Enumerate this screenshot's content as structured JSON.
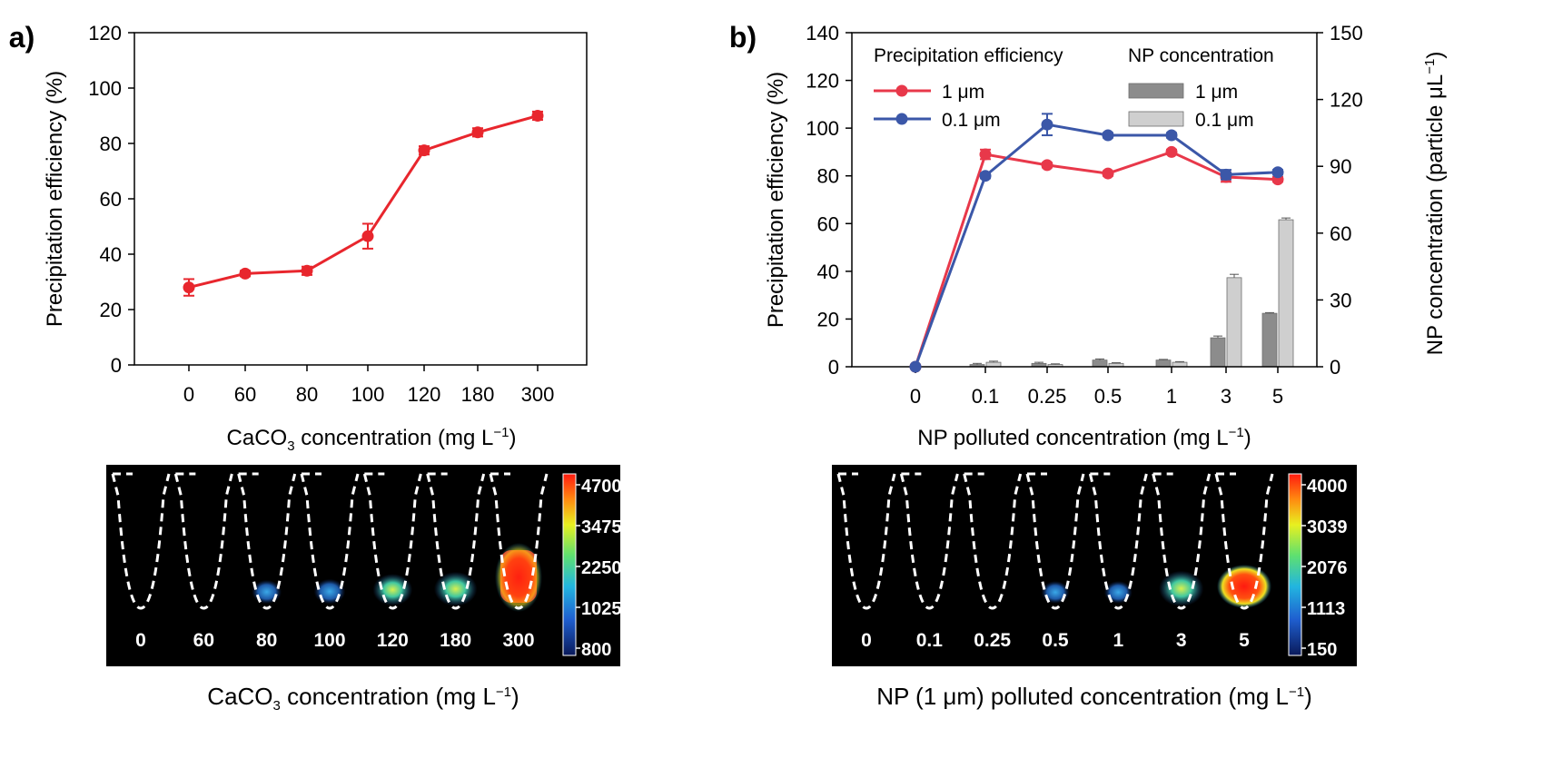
{
  "chart_data": [
    {
      "panel": "a)",
      "type": "line",
      "categories": [
        "0",
        "60",
        "80",
        "100",
        "120",
        "180",
        "300"
      ],
      "series": [
        {
          "name": "Precipitation efficiency",
          "color": "#e8262d",
          "values": [
            28,
            33,
            34,
            46.5,
            77.5,
            84,
            90
          ],
          "errors": [
            3,
            1,
            1.5,
            4.5,
            1.5,
            1.5,
            1.5
          ]
        }
      ],
      "ylabel": "Precipitation efficiency (%)",
      "xlabel_parts": [
        "CaCO",
        "3",
        " concentration (mg L",
        "−1",
        ")"
      ],
      "ylim": [
        0,
        120
      ],
      "yticks": [
        0,
        20,
        40,
        60,
        80,
        100,
        120
      ],
      "image_panel": {
        "labels": [
          "0",
          "60",
          "80",
          "100",
          "120",
          "180",
          "300"
        ],
        "colorbar_ticks": [
          "4700",
          "3475",
          "2250",
          "1025",
          "800"
        ],
        "caption_parts": [
          "CaCO",
          "3",
          " concentration (mg L",
          "−1",
          ")"
        ],
        "intensity": [
          0.05,
          0.04,
          0.25,
          0.3,
          0.55,
          0.65,
          1.0
        ]
      }
    },
    {
      "panel": "b)",
      "type": "line",
      "categories": [
        "0",
        "0.1",
        "0.25",
        "0.5",
        "1",
        "3",
        "5"
      ],
      "series": [
        {
          "name": "1 μm",
          "color": "#e8384a",
          "values": [
            0,
            89,
            84.5,
            81,
            90,
            79.5,
            78.5
          ],
          "errors": [
            0,
            2,
            1,
            1,
            1,
            2,
            1
          ]
        },
        {
          "name": "0.1 μm",
          "color": "#3b57a8",
          "values": [
            0,
            80,
            101.5,
            97,
            97,
            80.5,
            81.5
          ],
          "errors": [
            0,
            1,
            4.5,
            1,
            1,
            2,
            1
          ]
        }
      ],
      "bar_series": [
        {
          "name": "1 μm",
          "color": "#8c8c8c",
          "values": [
            0,
            1,
            1.5,
            3,
            3,
            13,
            24
          ],
          "errors": [
            0,
            0.5,
            0.5,
            0.5,
            0.3,
            0.8,
            0.3
          ]
        },
        {
          "name": "0.1 μm",
          "color": "#cfcfcf",
          "values": [
            0,
            2,
            1,
            1.5,
            2,
            40,
            66
          ],
          "errors": [
            0,
            0.5,
            0.3,
            0.3,
            0.3,
            1.5,
            0.8
          ]
        }
      ],
      "ylabel": "Precipitation efficiency (%)",
      "y2label_parts": [
        "NP concentration (particle μL",
        "−1",
        ")"
      ],
      "xlabel_parts": [
        "NP polluted  concentration (mg L",
        "−1",
        ")"
      ],
      "ylim": [
        0,
        140
      ],
      "yticks": [
        0,
        20,
        40,
        60,
        80,
        100,
        120,
        140
      ],
      "y2lim": [
        0,
        150
      ],
      "y2ticks": [
        0,
        30,
        60,
        90,
        120,
        150
      ],
      "legend_line_title": "Precipitation efficiency",
      "legend_bar_title": "NP concentration",
      "image_panel": {
        "labels": [
          "0",
          "0.1",
          "0.25",
          "0.5",
          "1",
          "3",
          "5"
        ],
        "colorbar_ticks": [
          "4000",
          "3039",
          "2076",
          "1113",
          "150"
        ],
        "caption_parts": [
          "NP (1 μm) polluted concentration (mg L",
          "−1",
          ")"
        ],
        "intensity": [
          0.1,
          0.08,
          0.1,
          0.2,
          0.2,
          0.7,
          1.0
        ]
      }
    }
  ]
}
